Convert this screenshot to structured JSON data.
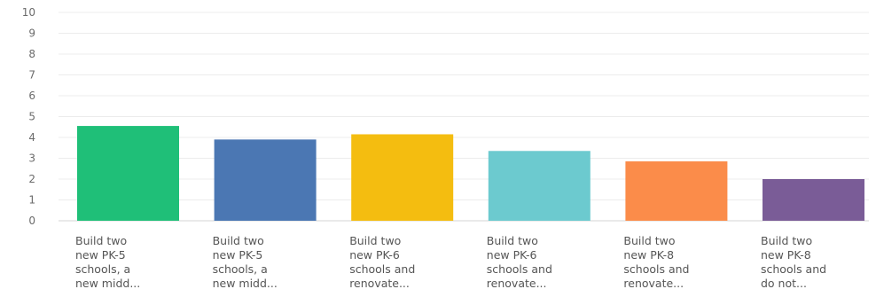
{
  "chart_data": {
    "type": "bar",
    "title": "",
    "xlabel": "",
    "ylabel": "",
    "ylim": [
      0,
      10
    ],
    "yticks": [
      "0",
      "1",
      "2",
      "3",
      "4",
      "5",
      "6",
      "7",
      "8",
      "9",
      "10"
    ],
    "grid": true,
    "categories": [
      [
        "Build two",
        "new PK-5",
        "schools, a",
        "new midd..."
      ],
      [
        "Build two",
        "new PK-5",
        "schools, a",
        "new midd..."
      ],
      [
        "Build two",
        "new PK-6",
        "schools and",
        "renovate..."
      ],
      [
        "Build two",
        "new PK-6",
        "schools and",
        "renovate..."
      ],
      [
        "Build two",
        "new PK-8",
        "schools and",
        "renovate..."
      ],
      [
        "Build two",
        "new PK-8",
        "schools and",
        "do not..."
      ]
    ],
    "values": [
      4.55,
      3.9,
      4.15,
      3.35,
      2.85,
      2.0
    ],
    "colors": [
      "#1fbf78",
      "#4b77b3",
      "#f4bd10",
      "#6ccacf",
      "#fb8c4a",
      "#7a5c97"
    ]
  }
}
